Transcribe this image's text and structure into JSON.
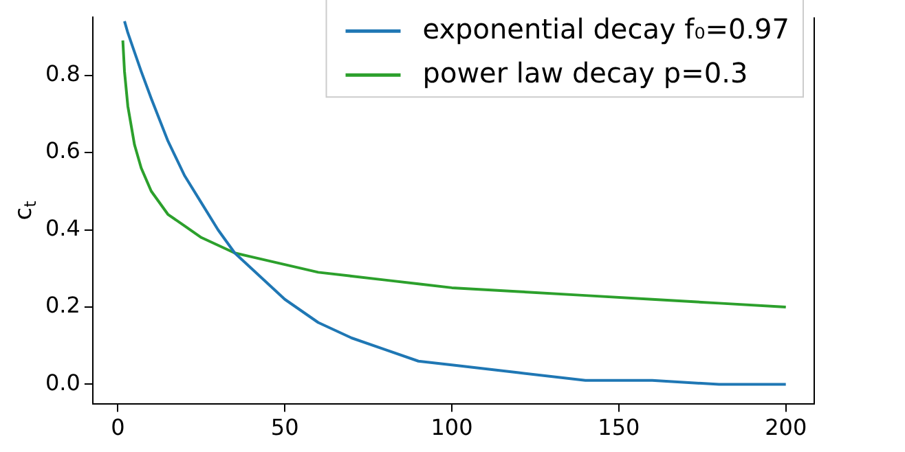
{
  "chart_data": {
    "type": "line",
    "ylabel": "c$_{t}$",
    "xlim": [
      -7.5,
      208.5
    ],
    "ylim": [
      -0.05,
      0.95
    ],
    "xticks": [
      0,
      50,
      100,
      150,
      200
    ],
    "yticks": [
      {
        "value": 0,
        "label": "0.0"
      },
      {
        "value": 0.2,
        "label": "0.2"
      },
      {
        "value": 0.4,
        "label": "0.4"
      },
      {
        "value": 0.6,
        "label": "0.6"
      },
      {
        "value": 0.8,
        "label": "0.8"
      }
    ],
    "grid": false,
    "legend": "top right",
    "marker": "none",
    "line_style": "solid",
    "series": [
      {
        "name": "exponential decay f₀=0.97",
        "color": "#1f77b4",
        "x": [
          2,
          3,
          5,
          7,
          10,
          15,
          20,
          25,
          30,
          35,
          40,
          50,
          60,
          70,
          80,
          90,
          100,
          120,
          140,
          160,
          180,
          200
        ],
        "values": [
          0.94,
          0.91,
          0.86,
          0.81,
          0.74,
          0.63,
          0.54,
          0.47,
          0.4,
          0.34,
          0.3,
          0.22,
          0.16,
          0.12,
          0.09,
          0.06,
          0.05,
          0.03,
          0.01,
          0.01,
          0.0,
          0.0
        ]
      },
      {
        "name": "power law decay p=0.3",
        "color": "#2ca02c",
        "x": [
          1.5,
          2,
          3,
          5,
          7,
          10,
          15,
          20,
          25,
          30,
          35,
          40,
          50,
          60,
          70,
          80,
          90,
          100,
          120,
          140,
          160,
          180,
          200
        ],
        "values": [
          0.89,
          0.81,
          0.72,
          0.62,
          0.56,
          0.5,
          0.44,
          0.41,
          0.38,
          0.36,
          0.34,
          0.33,
          0.31,
          0.29,
          0.28,
          0.27,
          0.26,
          0.25,
          0.24,
          0.23,
          0.22,
          0.21,
          0.2
        ]
      }
    ]
  }
}
